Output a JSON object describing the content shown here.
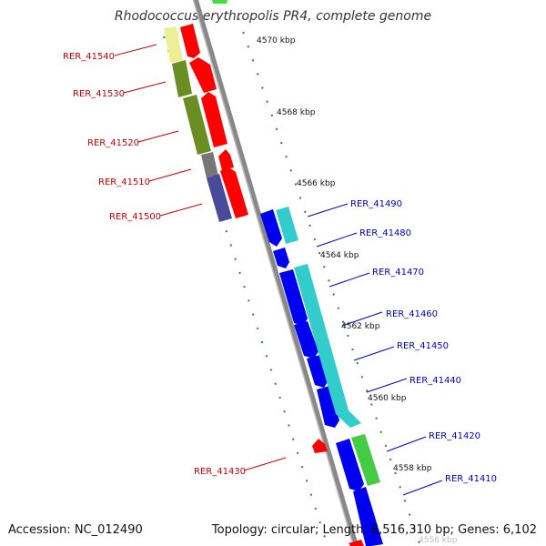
{
  "title": "Rhodococcus erythropolis PR4, complete genome",
  "footer": {
    "accession": "Accession: NC_012490",
    "summary": "Topology: circular; Length: 6,516,310 bp; Genes: 6,102"
  },
  "scale_labels": [
    "4570 kbp",
    "4568 kbp",
    "4566 kbp",
    "4564 kbp",
    "4562 kbp",
    "4560 kbp",
    "4558 kbp",
    "4556 kbp"
  ],
  "genes": [
    {
      "name": "RER_41540",
      "strand": "minus",
      "color": "#cc0000"
    },
    {
      "name": "RER_41530",
      "strand": "minus",
      "color": "#cc0000"
    },
    {
      "name": "RER_41520",
      "strand": "minus",
      "color": "#cc0000"
    },
    {
      "name": "RER_41510",
      "strand": "minus",
      "color": "#cc0000"
    },
    {
      "name": "RER_41500",
      "strand": "minus",
      "color": "#cc0000"
    },
    {
      "name": "RER_41490",
      "strand": "plus",
      "color": "#0000cc"
    },
    {
      "name": "RER_41480",
      "strand": "plus",
      "color": "#0000cc"
    },
    {
      "name": "RER_41470",
      "strand": "plus",
      "color": "#0000cc"
    },
    {
      "name": "RER_41460",
      "strand": "plus",
      "color": "#0000cc"
    },
    {
      "name": "RER_41450",
      "strand": "plus",
      "color": "#0000cc"
    },
    {
      "name": "RER_41440",
      "strand": "plus",
      "color": "#0000cc"
    },
    {
      "name": "RER_41430",
      "strand": "minus",
      "color": "#cc0000"
    },
    {
      "name": "RER_41420",
      "strand": "plus",
      "color": "#0000cc"
    },
    {
      "name": "RER_41410",
      "strand": "plus",
      "color": "#0000cc"
    }
  ],
  "colors": {
    "backbone": "#888888",
    "tick": "#2a8a2a",
    "gene_red": "#ff0000",
    "gene_blue": "#0000ee",
    "cog_cyan": "#33cccc",
    "cog_green": "#44cc44",
    "cog_olive": "#6b8e23",
    "cog_yellow": "#eeee99",
    "cog_gray": "#777777",
    "cog_navy": "#4a4a9a"
  }
}
